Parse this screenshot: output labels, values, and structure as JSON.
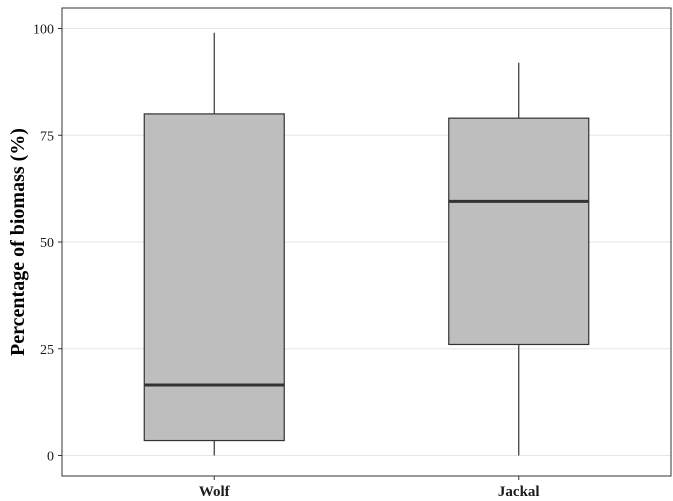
{
  "chart_data": {
    "type": "boxplot",
    "title": "",
    "xlabel": "",
    "ylabel": "Percentage of biomass (%)",
    "ylim": [
      -5,
      105
    ],
    "yticks": [
      0,
      25,
      50,
      75,
      100
    ],
    "ytick_labels": [
      "0",
      "25",
      "50",
      "75",
      "100"
    ],
    "grid": true,
    "legend": "none",
    "categories": [
      "Wolf",
      "Jackal"
    ],
    "boxes": [
      {
        "category": "Wolf",
        "whisker_low": 0,
        "q1": 3.5,
        "median": 16.5,
        "q3": 80,
        "whisker_high": 99
      },
      {
        "category": "Jackal",
        "whisker_low": 0,
        "q1": 26,
        "median": 59.5,
        "q3": 79,
        "whisker_high": 92
      }
    ],
    "colors": {
      "box_fill": "#bebebe",
      "box_stroke": "#333333",
      "median": "#333333",
      "grid": "#e6e6e6",
      "panel_border": "#333333"
    }
  }
}
